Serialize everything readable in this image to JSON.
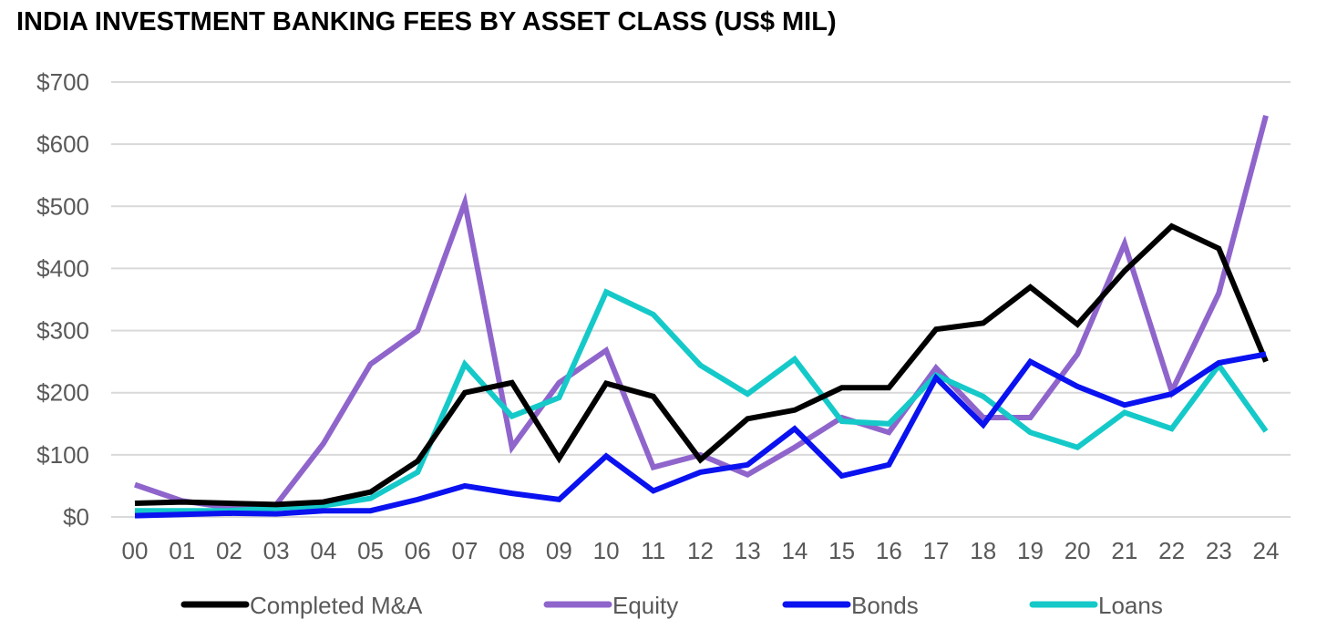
{
  "title": "INDIA INVESTMENT BANKING FEES BY ASSET CLASS (US$ MIL)",
  "chart_data": {
    "type": "line",
    "title": "INDIA INVESTMENT BANKING FEES BY ASSET CLASS (US$ MIL)",
    "xlabel": "",
    "ylabel": "",
    "categories": [
      "00",
      "01",
      "02",
      "03",
      "04",
      "05",
      "06",
      "07",
      "08",
      "09",
      "10",
      "11",
      "12",
      "13",
      "14",
      "15",
      "16",
      "17",
      "18",
      "19",
      "20",
      "21",
      "22",
      "23",
      "24"
    ],
    "ylim": [
      0,
      700
    ],
    "yticks": [
      0,
      100,
      200,
      300,
      400,
      500,
      600,
      700
    ],
    "ytick_labels": [
      "$0",
      "$100",
      "$200",
      "$300",
      "$400",
      "$500",
      "$600",
      "$700"
    ],
    "grid": true,
    "legend_position": "bottom",
    "series": [
      {
        "name": "Completed M&A",
        "color": "#000000",
        "values": [
          22,
          24,
          22,
          20,
          24,
          40,
          90,
          200,
          216,
          94,
          215,
          194,
          92,
          158,
          172,
          208,
          208,
          302,
          312,
          370,
          310,
          396,
          468,
          432,
          250
        ]
      },
      {
        "name": "Equity",
        "color": "#8f65cc",
        "values": [
          52,
          26,
          15,
          20,
          118,
          246,
          300,
          506,
          112,
          216,
          268,
          80,
          100,
          68,
          112,
          160,
          136,
          240,
          160,
          160,
          262,
          440,
          202,
          360,
          646
        ]
      },
      {
        "name": "Bonds",
        "color": "#0a12f0",
        "values": [
          2,
          4,
          6,
          5,
          10,
          10,
          28,
          50,
          38,
          28,
          98,
          42,
          72,
          84,
          142,
          66,
          84,
          224,
          148,
          250,
          210,
          180,
          198,
          248,
          262
        ]
      },
      {
        "name": "Loans",
        "color": "#15c9c9",
        "values": [
          10,
          10,
          10,
          14,
          18,
          30,
          72,
          246,
          162,
          192,
          362,
          326,
          244,
          198,
          254,
          154,
          150,
          228,
          194,
          136,
          112,
          168,
          142,
          244,
          138
        ]
      }
    ]
  }
}
